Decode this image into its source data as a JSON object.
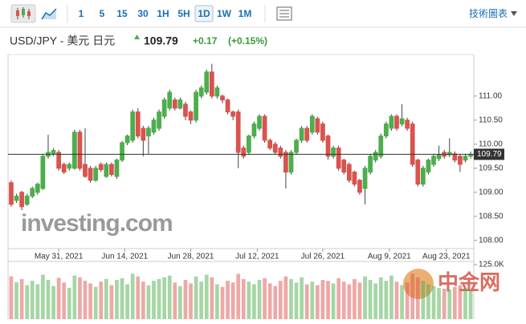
{
  "toolbar": {
    "intervals": [
      "1",
      "5",
      "15",
      "30",
      "1H",
      "5H",
      "1D",
      "1W",
      "1M"
    ],
    "link": "技術圖表"
  },
  "header": {
    "change": "+0.17",
    "change_pct": "(+0.15%)"
  },
  "watermarks": {
    "brand": "investing.com",
    "logo": "中金网"
  },
  "chart_data": {
    "type": "candlestick",
    "title": "USD/JPY - 美元 日元",
    "last_price": 109.79,
    "up_color": "#4cae4c",
    "down_color": "#d9534f",
    "xlim": [
      -0.6,
      87.6
    ],
    "ylim": [
      107.83,
      111.83
    ],
    "yticks": [
      {
        "value": 111,
        "label": "111.00"
      },
      {
        "value": 110.5,
        "label": "110.50"
      },
      {
        "value": 110,
        "label": "110.00"
      },
      {
        "value": 109.5,
        "label": "109.50"
      },
      {
        "value": 109,
        "label": "109.00"
      },
      {
        "value": 108.5,
        "label": "108.50"
      },
      {
        "value": 108,
        "label": "108.00"
      }
    ],
    "xticks": [
      {
        "value": 9,
        "label": "May 31, 2021"
      },
      {
        "value": 21.5,
        "label": "Jun 14, 2021"
      },
      {
        "value": 34,
        "label": "Jun 28, 2021"
      },
      {
        "value": 46.6,
        "label": "Jul 12, 2021"
      },
      {
        "value": 59,
        "label": "Jul 26, 2021"
      },
      {
        "value": 71.6,
        "label": "Aug 9, 2021"
      },
      {
        "value": 82.4,
        "label": "Aug 23, 2021"
      }
    ],
    "open": [
      109.2,
      108.83,
      109.0,
      108.75,
      108.92,
      109.0,
      109.08,
      109.75,
      109.8,
      109.83,
      109.58,
      109.5,
      109.5,
      110.25,
      109.58,
      109.5,
      109.25,
      109.58,
      109.33,
      109.58,
      109.33,
      109.67,
      110.03,
      110.08,
      110.67,
      110.33,
      110.17,
      110.25,
      110.33,
      110.58,
      110.75,
      110.92,
      110.75,
      110.83,
      110.67,
      110.5,
      111.0,
      111.08,
      111.5,
      111.0,
      111.0,
      110.92,
      110.67,
      110.67,
      109.92,
      109.83,
      110.17,
      110.33,
      110.58,
      110.08,
      110.0,
      109.92,
      109.83,
      109.42,
      109.83,
      110.08,
      110.33,
      110.25,
      110.53,
      110.42,
      110.17,
      109.75,
      109.92,
      109.67,
      109.58,
      109.42,
      109.25,
      109.08,
      109.42,
      109.67,
      109.75,
      110.17,
      110.33,
      110.58,
      110.42,
      110.5,
      110.42,
      109.67,
      109.17,
      109.42,
      109.58,
      109.7,
      109.83,
      109.78,
      109.8,
      109.75,
      109.67,
      109.75
    ],
    "high": [
      109.25,
      108.97,
      109.03,
      108.97,
      109.12,
      109.2,
      109.8,
      110.2,
      109.92,
      109.88,
      109.62,
      109.62,
      110.3,
      110.3,
      110.33,
      109.55,
      109.55,
      109.62,
      109.62,
      109.62,
      109.7,
      110.07,
      110.2,
      110.72,
      110.75,
      110.38,
      110.38,
      110.55,
      110.72,
      110.97,
      111.13,
      110.97,
      110.97,
      110.88,
      110.7,
      111.13,
      111.22,
      111.55,
      111.67,
      111.22,
      111.03,
      110.95,
      110.7,
      110.72,
      109.97,
      110.2,
      110.47,
      110.62,
      110.62,
      110.12,
      110.05,
      109.97,
      109.88,
      109.88,
      110.12,
      110.38,
      110.38,
      110.62,
      110.57,
      110.47,
      110.2,
      109.97,
      109.97,
      109.7,
      109.62,
      109.45,
      109.28,
      109.55,
      109.8,
      109.88,
      110.22,
      110.47,
      110.62,
      110.62,
      110.83,
      110.55,
      110.47,
      109.7,
      109.55,
      109.7,
      109.8,
      109.97,
      109.88,
      110.12,
      109.85,
      109.8,
      109.8,
      109.85
    ],
    "low": [
      108.7,
      108.78,
      108.63,
      108.72,
      108.88,
      108.95,
      109.05,
      109.7,
      109.75,
      109.45,
      109.38,
      109.45,
      109.47,
      109.45,
      109.3,
      109.2,
      109.22,
      109.42,
      109.3,
      109.33,
      109.28,
      109.63,
      109.98,
      110.03,
      110.12,
      109.75,
      109.8,
      110.2,
      110.28,
      110.53,
      110.7,
      110.7,
      110.72,
      110.5,
      110.42,
      110.45,
      110.95,
      111.03,
      110.95,
      110.95,
      110.85,
      110.62,
      110.5,
      109.5,
      109.7,
      109.78,
      110.12,
      110.28,
      110.03,
      109.88,
      109.78,
      109.7,
      109.08,
      109.37,
      109.78,
      110.03,
      110.03,
      110.2,
      110.2,
      110.03,
      109.68,
      109.7,
      109.45,
      109.37,
      109.2,
      109.12,
      108.95,
      108.75,
      109.37,
      109.62,
      109.7,
      110.12,
      110.28,
      110.28,
      110.37,
      110.28,
      109.53,
      109.12,
      109.12,
      109.37,
      109.53,
      109.65,
      109.7,
      109.73,
      109.62,
      109.42,
      109.62,
      109.7
    ],
    "close": [
      108.75,
      108.92,
      108.7,
      108.92,
      109.08,
      109.17,
      109.75,
      109.83,
      109.87,
      109.5,
      109.42,
      109.58,
      110.25,
      109.5,
      109.33,
      109.25,
      109.5,
      109.47,
      109.58,
      109.37,
      109.67,
      110.03,
      110.17,
      110.67,
      110.17,
      110.08,
      110.33,
      110.5,
      110.67,
      110.92,
      111.08,
      110.75,
      110.92,
      110.58,
      110.5,
      111.08,
      111.17,
      111.5,
      111.0,
      111.17,
      110.92,
      110.67,
      110.58,
      109.83,
      109.75,
      110.17,
      110.42,
      110.58,
      110.08,
      109.92,
      109.83,
      109.75,
      109.42,
      109.83,
      110.08,
      110.33,
      110.08,
      110.58,
      110.25,
      110.08,
      109.75,
      109.92,
      109.5,
      109.42,
      109.25,
      109.17,
      109.0,
      109.5,
      109.75,
      109.83,
      110.17,
      110.42,
      110.58,
      110.33,
      110.53,
      110.33,
      109.58,
      109.17,
      109.5,
      109.67,
      109.75,
      109.78,
      109.75,
      109.83,
      109.67,
      109.58,
      109.75,
      109.79
    ],
    "volume": [
      98000,
      85000,
      92000,
      78000,
      88000,
      80000,
      102000,
      90000,
      76000,
      95000,
      84000,
      72000,
      100000,
      96000,
      88000,
      82000,
      74000,
      86000,
      92000,
      78000,
      90000,
      94000,
      80000,
      104000,
      98000,
      86000,
      78000,
      88000,
      92000,
      96000,
      100000,
      84000,
      76000,
      90000,
      82000,
      98000,
      86000,
      102000,
      96000,
      80000,
      74000,
      88000,
      84000,
      104000,
      92000,
      86000,
      80000,
      90000,
      94000,
      82000,
      76000,
      88000,
      98000,
      92000,
      84000,
      96000,
      80000,
      86000,
      78000,
      90000,
      88000,
      82000,
      94000,
      86000,
      80000,
      92000,
      84000,
      98000,
      90000,
      82000,
      96000,
      88000,
      100000,
      86000,
      78000,
      84000,
      104000,
      96000,
      88000,
      80000,
      76000,
      72000,
      70000,
      68000,
      74000,
      78000,
      70000,
      66000
    ],
    "volume_ylim": [
      0,
      125000
    ],
    "volume_yticks": [
      {
        "value": 125000,
        "label": "125.0K"
      }
    ]
  }
}
